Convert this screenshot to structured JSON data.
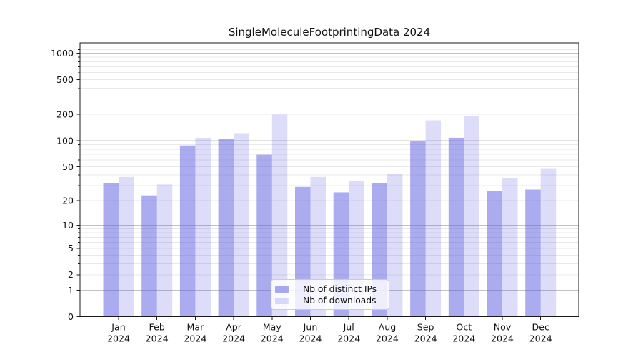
{
  "chart_data": {
    "type": "bar",
    "title": "SingleMoleculeFootprintingData 2024",
    "xlabel": "",
    "ylabel": "",
    "categories": [
      "Jan 2024",
      "Feb 2024",
      "Mar 2024",
      "Apr 2024",
      "May 2024",
      "Jun 2024",
      "Jul 2024",
      "Aug 2024",
      "Sep 2024",
      "Oct 2024",
      "Nov 2024",
      "Dec 2024"
    ],
    "series": [
      {
        "name": "Nb of distinct IPs",
        "color": "rgba(87,87,226,0.50)",
        "values": [
          32,
          23,
          88,
          104,
          69,
          29,
          25,
          32,
          98,
          108,
          26,
          27
        ]
      },
      {
        "name": "Nb of downloads",
        "color": "rgba(87,87,226,0.20)",
        "values": [
          38,
          31,
          108,
          122,
          199,
          38,
          34,
          41,
          171,
          190,
          37,
          48
        ]
      }
    ],
    "yscale": "log10(1+x)",
    "ylim": [
      0,
      1324
    ],
    "ytick_labels": [
      1000,
      500,
      200,
      100,
      50,
      20,
      10,
      5,
      2,
      1,
      0
    ],
    "major_gridlines": [
      1,
      10,
      100,
      1000
    ],
    "minor_gridlines": [
      2,
      3,
      4,
      5,
      6,
      7,
      8,
      9,
      20,
      30,
      40,
      50,
      60,
      70,
      80,
      90,
      200,
      300,
      400,
      500,
      600,
      700,
      800,
      900,
      1100,
      1200
    ],
    "grid_major_color": "#c2c2c2",
    "grid_minor_color": "#e9e9e9",
    "spine_color": "#1a1a1a",
    "legend": {
      "position": "lower center",
      "entries": [
        "Nb of distinct IPs",
        "Nb of downloads"
      ]
    }
  }
}
